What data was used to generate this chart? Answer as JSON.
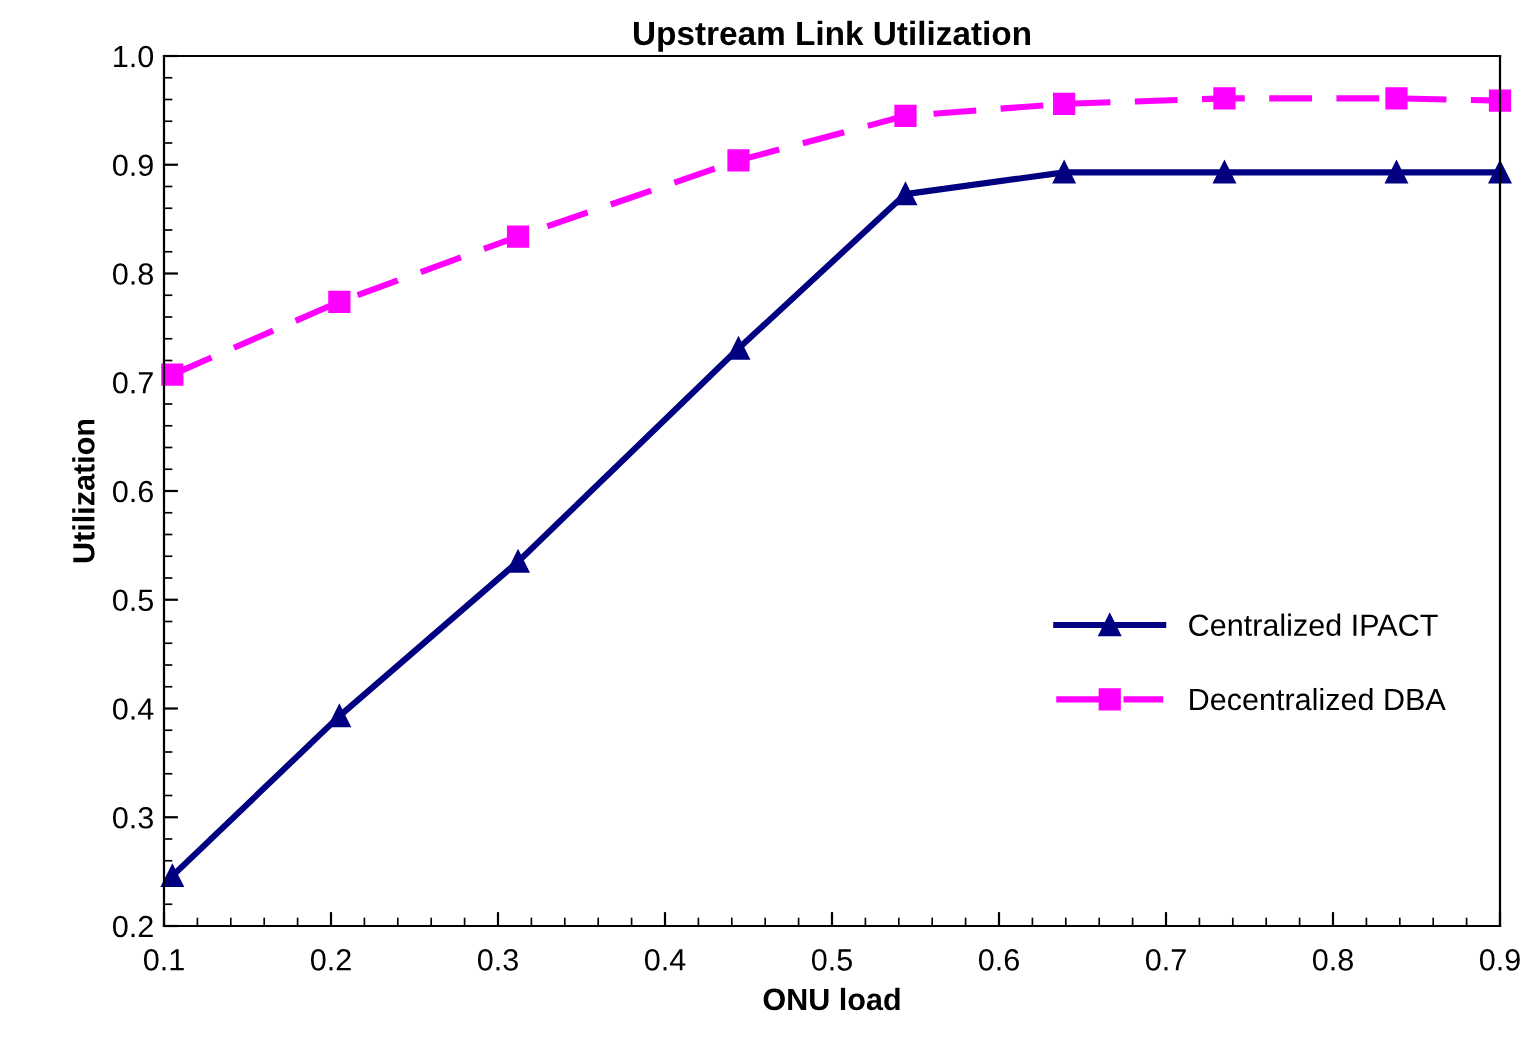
{
  "chart_data": {
    "type": "line",
    "title": "Upstream Link Utilization",
    "xlabel": "ONU load",
    "ylabel": "Utilization",
    "x": [
      0.105,
      0.205,
      0.312,
      0.444,
      0.544,
      0.639,
      0.735,
      0.838,
      0.9
    ],
    "series": [
      {
        "name": "Centralized IPACT",
        "color": "#000080",
        "marker": "triangle",
        "line_style": "solid",
        "values": [
          0.246,
          0.393,
          0.535,
          0.731,
          0.873,
          0.893,
          0.893,
          0.893,
          0.893
        ]
      },
      {
        "name": "Decentralized DBA",
        "color": "#ff00ff",
        "marker": "square",
        "line_style": "dashed",
        "values": [
          0.707,
          0.774,
          0.834,
          0.904,
          0.945,
          0.956,
          0.961,
          0.961,
          0.959
        ]
      }
    ],
    "xlim": [
      0.1,
      0.9
    ],
    "xticks": [
      0.1,
      0.2,
      0.3,
      0.4,
      0.5,
      0.6,
      0.7,
      0.8,
      0.9
    ],
    "ylim": [
      0.2,
      1.0
    ],
    "yticks": [
      0.2,
      0.3,
      0.4,
      0.5,
      0.6,
      0.7,
      0.8,
      0.9,
      {
        "value": 1.0,
        "label": "1.0"
      }
    ],
    "grid": false,
    "legend": "right"
  }
}
